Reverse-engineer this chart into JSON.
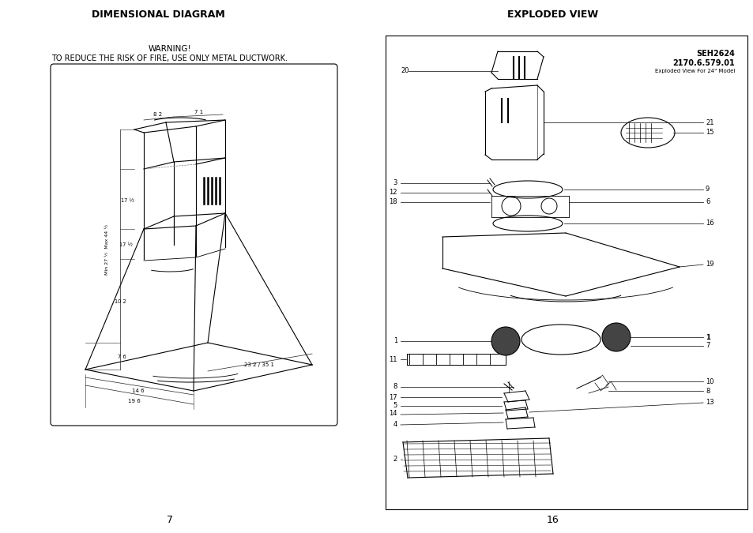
{
  "bg_color": "#ffffff",
  "left_title": "DIMENSIONAL DIAGRAM",
  "right_title": "EXPLODED VIEW",
  "warning_line1": "WARNING!",
  "warning_line2": "TO REDUCE THE RISK OF FIRE, USE ONLY METAL DUCTWORK.",
  "left_page_num": "7",
  "right_page_num": "16",
  "model_num": "SEH2624",
  "part_num": "2170.6.579.01",
  "model_desc": "Exploded View For 24\" Model"
}
